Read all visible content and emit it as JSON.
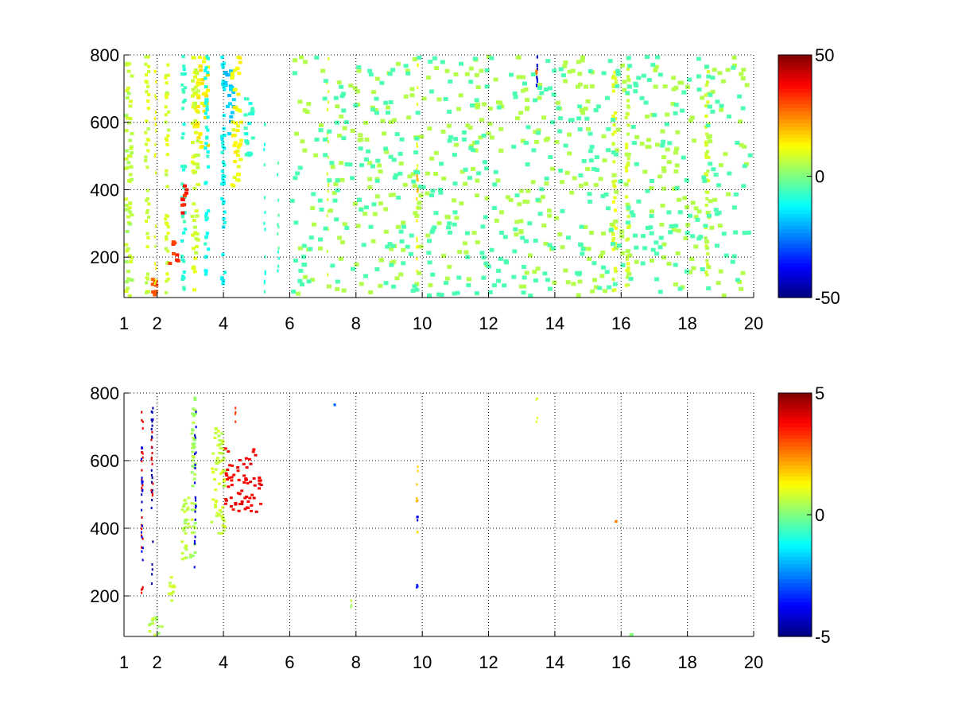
{
  "chart_data": [
    {
      "type": "heatmap",
      "colormap": "jet",
      "xlim": [
        1,
        20
      ],
      "ylim": [
        80,
        800
      ],
      "x_ticks": [
        1,
        2,
        4,
        6,
        8,
        10,
        12,
        14,
        16,
        18,
        20
      ],
      "x_tick_labels": [
        "1",
        "2",
        "4",
        "6",
        "8",
        "10",
        "12",
        "14",
        "16",
        "18",
        "20"
      ],
      "y_ticks": [
        200,
        400,
        600,
        800
      ],
      "y_tick_labels": [
        "200",
        "400",
        "600",
        "800"
      ],
      "grid": true,
      "colorbar": {
        "min": -50,
        "max": 50,
        "tick_labels": [
          "50",
          "0",
          "-50"
        ]
      },
      "features": [
        {
          "x": [
            1.0,
            1.3
          ],
          "y": [
            80,
            800
          ],
          "value": 6
        },
        {
          "x": [
            1.6,
            1.8
          ],
          "y": [
            80,
            800
          ],
          "value": 8
        },
        {
          "x": [
            1.8,
            2.1
          ],
          "y": [
            80,
            140
          ],
          "value": 30
        },
        {
          "x": [
            1.9,
            2.0
          ],
          "y": [
            80,
            800
          ],
          "value": 10
        },
        {
          "x": [
            2.2,
            2.4
          ],
          "y": [
            80,
            800
          ],
          "value": 8
        },
        {
          "x": [
            2.3,
            2.7
          ],
          "y": [
            170,
            250
          ],
          "value": 32
        },
        {
          "x": [
            2.7,
            2.9
          ],
          "y": [
            80,
            800
          ],
          "value": -8
        },
        {
          "x": [
            2.7,
            3.0
          ],
          "y": [
            320,
            420
          ],
          "value": 35
        },
        {
          "x": [
            3.0,
            3.3
          ],
          "y": [
            80,
            800
          ],
          "value": 8
        },
        {
          "x": [
            3.1,
            3.6
          ],
          "y": [
            520,
            800
          ],
          "value": 14
        },
        {
          "x": [
            3.4,
            3.6
          ],
          "y": [
            80,
            800
          ],
          "value": -10
        },
        {
          "x": [
            3.9,
            4.1
          ],
          "y": [
            80,
            800
          ],
          "value": -12
        },
        {
          "x": [
            4.0,
            4.4
          ],
          "y": [
            560,
            760
          ],
          "value": -18
        },
        {
          "x": [
            4.2,
            4.6
          ],
          "y": [
            400,
            800
          ],
          "value": 12
        },
        {
          "x": [
            4.6,
            5.0
          ],
          "y": [
            480,
            680
          ],
          "value": -8
        },
        {
          "x": [
            5.2,
            5.3
          ],
          "y": [
            80,
            600
          ],
          "value": -8
        },
        {
          "x": [
            5.6,
            5.7
          ],
          "y": [
            80,
            500
          ],
          "value": -6
        },
        {
          "x": [
            7.1,
            7.2
          ],
          "y": [
            80,
            800
          ],
          "value": 9
        },
        {
          "x": [
            9.8,
            9.9
          ],
          "y": [
            80,
            800
          ],
          "value": 12
        },
        {
          "x": [
            9.8,
            9.9
          ],
          "y": [
            380,
            480
          ],
          "value": 20
        },
        {
          "x": [
            13.4,
            13.5
          ],
          "y": [
            700,
            800
          ],
          "value": -40
        },
        {
          "x": [
            13.4,
            13.5
          ],
          "y": [
            740,
            760
          ],
          "value": 25
        },
        {
          "x": [
            15.7,
            15.9
          ],
          "y": [
            80,
            800
          ],
          "value": 9
        },
        {
          "x": [
            16.1,
            16.3
          ],
          "y": [
            80,
            800
          ],
          "value": 8
        },
        {
          "x": [
            18.5,
            18.7
          ],
          "y": [
            80,
            800
          ],
          "value": 7
        },
        {
          "x": [
            6.0,
            20.0
          ],
          "y": [
            80,
            800
          ],
          "value": 5,
          "scatter": true
        },
        {
          "x": [
            6.0,
            20.0
          ],
          "y": [
            80,
            800
          ],
          "value": -5,
          "scatter": true
        }
      ]
    },
    {
      "type": "heatmap",
      "colormap": "jet",
      "xlim": [
        1,
        20
      ],
      "ylim": [
        80,
        800
      ],
      "x_ticks": [
        1,
        2,
        4,
        6,
        8,
        10,
        12,
        14,
        16,
        18,
        20
      ],
      "x_tick_labels": [
        "1",
        "2",
        "4",
        "6",
        "8",
        "10",
        "12",
        "14",
        "16",
        "18",
        "20"
      ],
      "y_ticks": [
        200,
        400,
        600,
        800
      ],
      "y_tick_labels": [
        "200",
        "400",
        "600",
        "800"
      ],
      "grid": true,
      "colorbar": {
        "min": -5,
        "max": 5,
        "tick_labels": [
          "5",
          "0",
          "-5"
        ]
      },
      "features": [
        {
          "x": [
            1.5,
            1.6
          ],
          "y": [
            200,
            760
          ],
          "value": 4
        },
        {
          "x": [
            1.5,
            1.6
          ],
          "y": [
            300,
            700
          ],
          "value": -4
        },
        {
          "x": [
            1.8,
            1.9
          ],
          "y": [
            220,
            760
          ],
          "value": -4.5
        },
        {
          "x": [
            1.8,
            1.9
          ],
          "y": [
            450,
            700
          ],
          "value": 4
        },
        {
          "x": [
            1.7,
            2.2
          ],
          "y": [
            80,
            140
          ],
          "value": 0.5
        },
        {
          "x": [
            2.3,
            2.6
          ],
          "y": [
            180,
            260
          ],
          "value": 0.8
        },
        {
          "x": [
            2.7,
            3.1
          ],
          "y": [
            300,
            500
          ],
          "value": 0.6
        },
        {
          "x": [
            3.0,
            3.2
          ],
          "y": [
            300,
            800
          ],
          "value": 0.4
        },
        {
          "x": [
            3.1,
            3.2
          ],
          "y": [
            280,
            760
          ],
          "value": -4
        },
        {
          "x": [
            3.6,
            4.1
          ],
          "y": [
            380,
            700
          ],
          "value": 0.7
        },
        {
          "x": [
            4.0,
            5.2
          ],
          "y": [
            440,
            640
          ],
          "value": 3.8
        },
        {
          "x": [
            4.3,
            4.4
          ],
          "y": [
            700,
            770
          ],
          "value": 3
        },
        {
          "x": [
            7.3,
            7.4
          ],
          "y": [
            760,
            770
          ],
          "value": -2.5
        },
        {
          "x": [
            7.8,
            7.9
          ],
          "y": [
            160,
            190
          ],
          "value": 0.5
        },
        {
          "x": [
            9.8,
            9.9
          ],
          "y": [
            380,
            590
          ],
          "value": 1.8
        },
        {
          "x": [
            9.8,
            9.9
          ],
          "y": [
            420,
            440
          ],
          "value": -4
        },
        {
          "x": [
            9.8,
            9.9
          ],
          "y": [
            220,
            240
          ],
          "value": -3.5
        },
        {
          "x": [
            13.4,
            13.5
          ],
          "y": [
            700,
            800
          ],
          "value": 1
        },
        {
          "x": [
            15.8,
            15.9
          ],
          "y": [
            415,
            425
          ],
          "value": 2.5
        },
        {
          "x": [
            16.2,
            16.4
          ],
          "y": [
            80,
            90
          ],
          "value": 0
        }
      ]
    }
  ]
}
